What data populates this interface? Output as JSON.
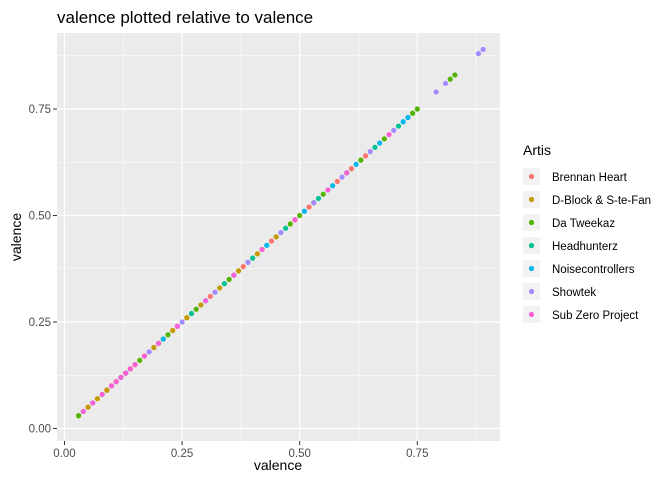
{
  "chart_data": {
    "type": "scatter",
    "title": "valence plotted relative to valence",
    "xlabel": "valence",
    "ylabel": "valence",
    "xlim": [
      0.0,
      0.9
    ],
    "ylim": [
      0.0,
      0.9
    ],
    "x_ticks": [
      "0.00",
      "0.25",
      "0.50",
      "0.75"
    ],
    "y_ticks": [
      "0.00",
      "0.25",
      "0.50",
      "0.75"
    ],
    "x_tick_values": [
      0.0,
      0.25,
      0.5,
      0.75
    ],
    "y_tick_values": [
      0.0,
      0.25,
      0.5,
      0.75
    ],
    "grid": true,
    "background": "#EBEBEB",
    "legend": {
      "title": "Artis",
      "position": "right"
    },
    "series": [
      {
        "name": "Brennan Heart",
        "color": "#F8766D",
        "x": [
          0.05,
          0.09,
          0.14,
          0.19,
          0.24,
          0.31,
          0.38,
          0.44,
          0.52,
          0.58,
          0.61,
          0.64
        ],
        "y": [
          0.05,
          0.09,
          0.14,
          0.19,
          0.24,
          0.31,
          0.38,
          0.44,
          0.52,
          0.58,
          0.61,
          0.64
        ]
      },
      {
        "name": "D-Block & S-te-Fan",
        "color": "#C49A00",
        "x": [
          0.03,
          0.05,
          0.07,
          0.09,
          0.11,
          0.13,
          0.15,
          0.17,
          0.19,
          0.21,
          0.23,
          0.26,
          0.29,
          0.33,
          0.37,
          0.41,
          0.45,
          0.49
        ],
        "y": [
          0.03,
          0.05,
          0.07,
          0.09,
          0.11,
          0.13,
          0.15,
          0.17,
          0.19,
          0.21,
          0.23,
          0.26,
          0.29,
          0.33,
          0.37,
          0.41,
          0.45,
          0.49
        ]
      },
      {
        "name": "Da Tweekaz",
        "color": "#53B400",
        "x": [
          0.03,
          0.08,
          0.16,
          0.22,
          0.28,
          0.35,
          0.42,
          0.48,
          0.5,
          0.53,
          0.55,
          0.63,
          0.68,
          0.74,
          0.75,
          0.82,
          0.83
        ],
        "y": [
          0.03,
          0.08,
          0.16,
          0.22,
          0.28,
          0.35,
          0.42,
          0.48,
          0.5,
          0.53,
          0.55,
          0.63,
          0.68,
          0.74,
          0.75,
          0.82,
          0.83
        ]
      },
      {
        "name": "Headhunterz",
        "color": "#00C094",
        "x": [
          0.04,
          0.12,
          0.2,
          0.27,
          0.34,
          0.4,
          0.47,
          0.54,
          0.6,
          0.66,
          0.71
        ],
        "y": [
          0.04,
          0.12,
          0.2,
          0.27,
          0.34,
          0.4,
          0.47,
          0.54,
          0.6,
          0.66,
          0.71
        ]
      },
      {
        "name": "Noisecontrollers",
        "color": "#00B6EB",
        "x": [
          0.06,
          0.13,
          0.21,
          0.3,
          0.36,
          0.43,
          0.51,
          0.57,
          0.62,
          0.67,
          0.72,
          0.73
        ],
        "y": [
          0.06,
          0.13,
          0.21,
          0.3,
          0.36,
          0.43,
          0.51,
          0.57,
          0.62,
          0.67,
          0.72,
          0.73
        ]
      },
      {
        "name": "Showtek",
        "color": "#A58AFF",
        "x": [
          0.1,
          0.18,
          0.25,
          0.32,
          0.39,
          0.46,
          0.53,
          0.59,
          0.65,
          0.7,
          0.79,
          0.81,
          0.88,
          0.89
        ],
        "y": [
          0.1,
          0.18,
          0.25,
          0.32,
          0.39,
          0.46,
          0.53,
          0.59,
          0.65,
          0.7,
          0.79,
          0.81,
          0.88,
          0.89
        ]
      },
      {
        "name": "Sub Zero Project",
        "color": "#FB61D7",
        "x": [
          0.04,
          0.06,
          0.08,
          0.1,
          0.11,
          0.12,
          0.13,
          0.14,
          0.15,
          0.17,
          0.2,
          0.24,
          0.3,
          0.36,
          0.42,
          0.49,
          0.56,
          0.6,
          0.69
        ],
        "y": [
          0.04,
          0.06,
          0.08,
          0.1,
          0.11,
          0.12,
          0.13,
          0.14,
          0.15,
          0.17,
          0.2,
          0.24,
          0.3,
          0.36,
          0.42,
          0.49,
          0.56,
          0.6,
          0.69
        ]
      }
    ]
  }
}
